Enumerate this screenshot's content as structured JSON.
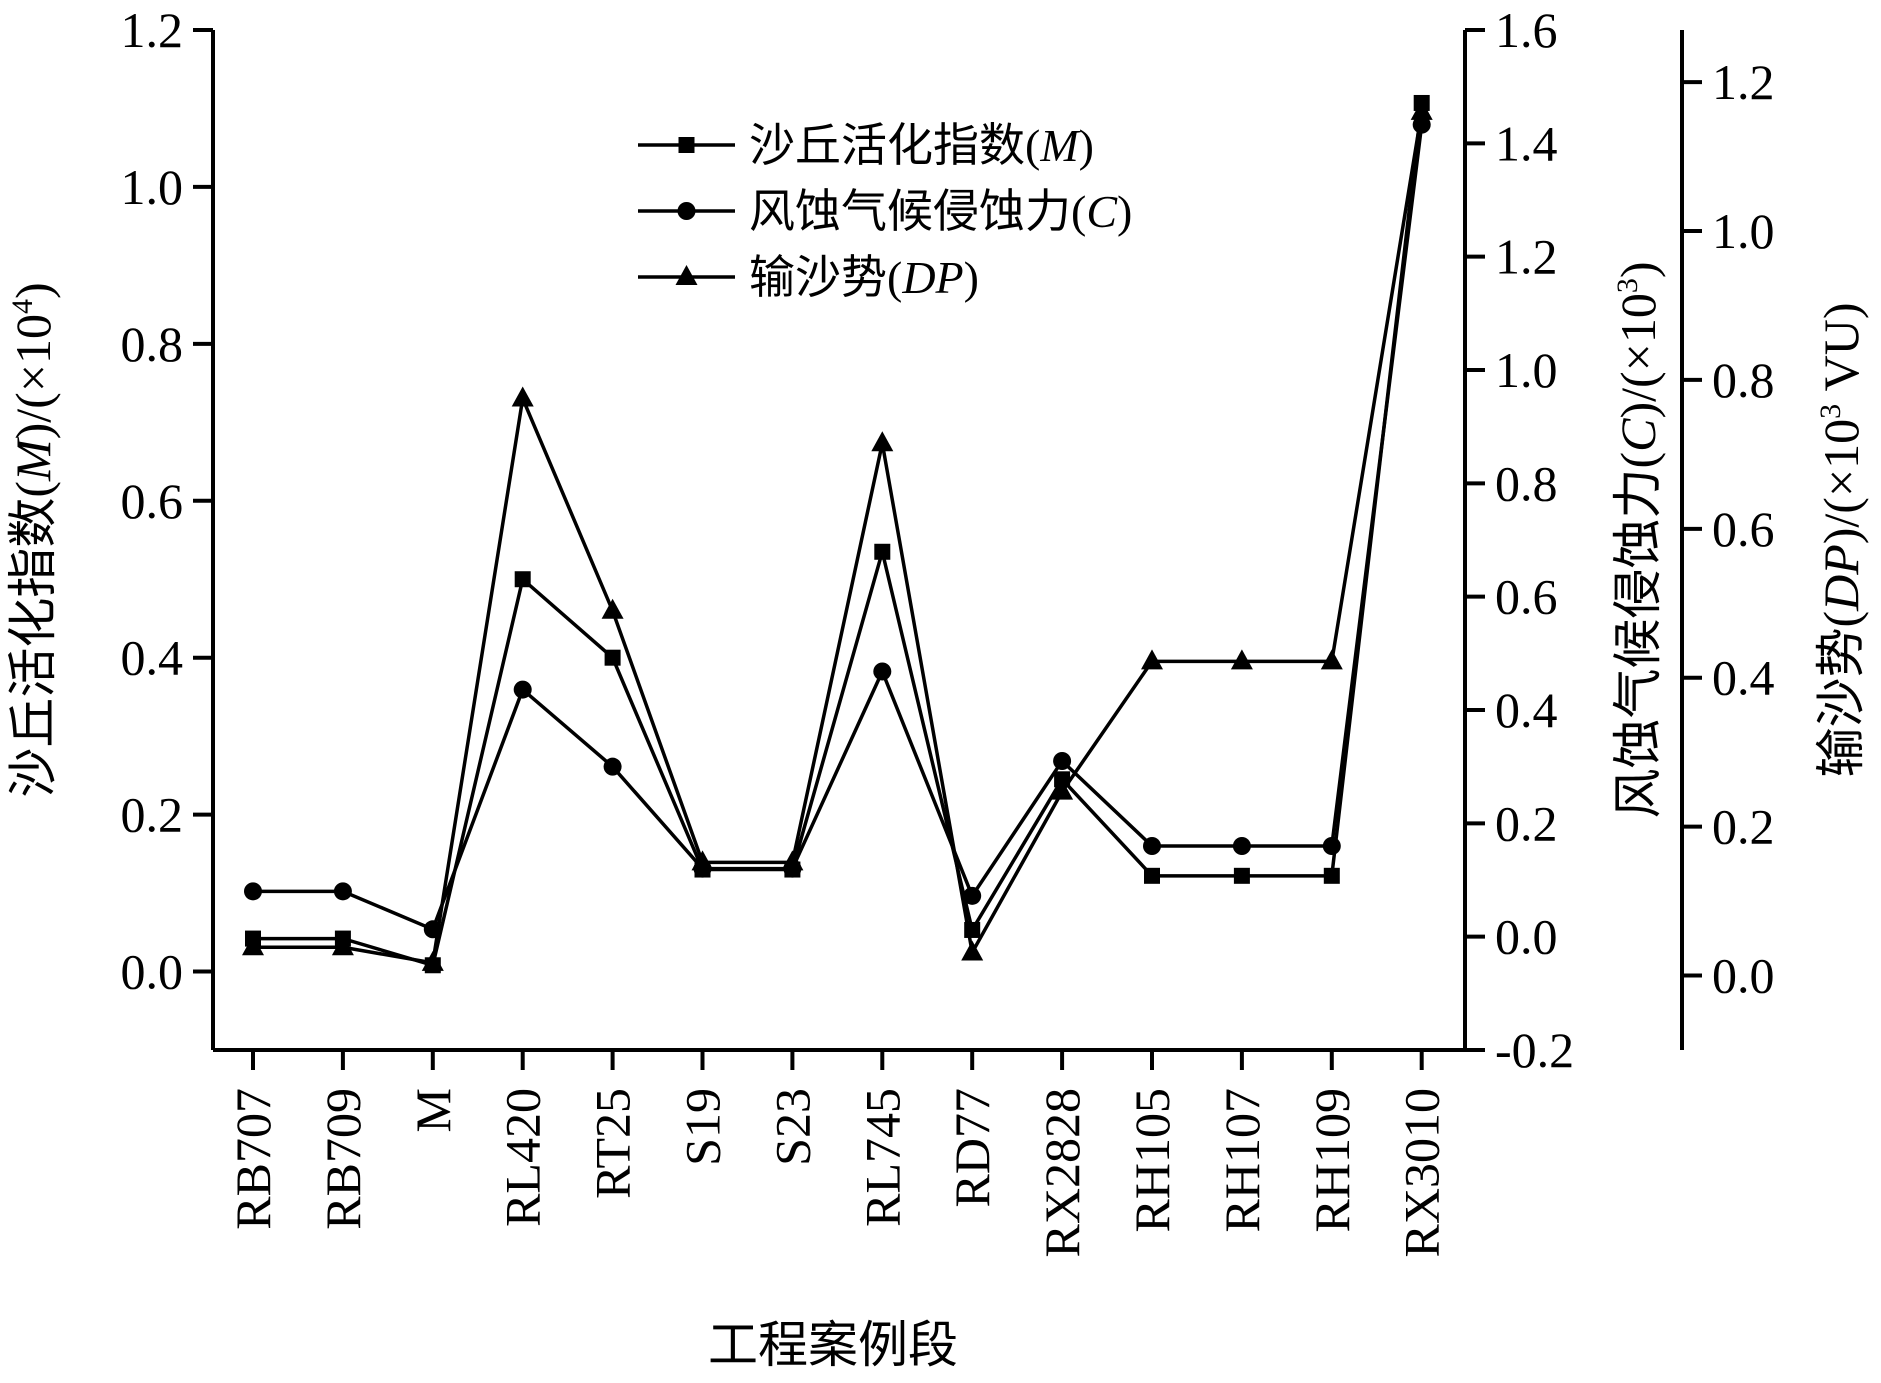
{
  "chart_data": {
    "type": "line",
    "categories": [
      "RB707",
      "RB709",
      "M",
      "RL420",
      "RT25",
      "S19",
      "S23",
      "RL745",
      "RD77",
      "RX2828",
      "RH105",
      "RH107",
      "RH109",
      "RX3010"
    ],
    "xlabel": "工程案例段",
    "axes": {
      "left": {
        "label_prefix": "沙丘活化指数(",
        "label_var": "M",
        "label_mid": ")/(×10",
        "label_sup": "4",
        "label_suffix": ")",
        "ylim": [
          -0.1,
          1.2
        ],
        "ticks": [
          "0.0",
          "0.2",
          "0.4",
          "0.6",
          "0.8",
          "1.0",
          "1.2"
        ]
      },
      "right1": {
        "label_prefix": "风蚀气候侵蚀力(",
        "label_var": "C",
        "label_mid": ")/(×10",
        "label_sup": "3",
        "label_suffix": ")",
        "ylim": [
          -0.2,
          1.6
        ],
        "ticks": [
          "-0.2",
          "0.0",
          "0.2",
          "0.4",
          "0.6",
          "0.8",
          "1.0",
          "1.2",
          "1.4",
          "1.6"
        ]
      },
      "right2": {
        "label_prefix": "输沙势(",
        "label_var": "DP",
        "label_mid": ")/(×10",
        "label_sup": "3",
        "label_suffix": " VU)",
        "ylim": [
          -0.1,
          1.27
        ],
        "ticks": [
          "0.0",
          "0.2",
          "0.4",
          "0.6",
          "0.8",
          "1.0",
          "1.2"
        ]
      }
    },
    "series": [
      {
        "name": "沙丘活化指数",
        "var": "M",
        "axis": "left",
        "marker": "square",
        "values": [
          0.042,
          0.042,
          0.008,
          0.5,
          0.4,
          0.13,
          0.13,
          0.535,
          0.053,
          0.245,
          0.122,
          0.122,
          0.122,
          1.107
        ]
      },
      {
        "name": "风蚀气候侵蚀力",
        "var": "C",
        "axis": "right1",
        "marker": "circle",
        "values": [
          0.08,
          0.08,
          0.013,
          0.436,
          0.3,
          0.12,
          0.12,
          0.468,
          0.072,
          0.31,
          0.16,
          0.16,
          0.16,
          1.433
        ]
      },
      {
        "name": "输沙势",
        "var": "DP",
        "axis": "right2",
        "marker": "triangle",
        "values": [
          0.038,
          0.038,
          0.017,
          0.775,
          0.49,
          0.152,
          0.152,
          0.715,
          0.031,
          0.247,
          0.422,
          0.422,
          0.422,
          1.16
        ]
      }
    ],
    "legend_position": "top-center"
  }
}
